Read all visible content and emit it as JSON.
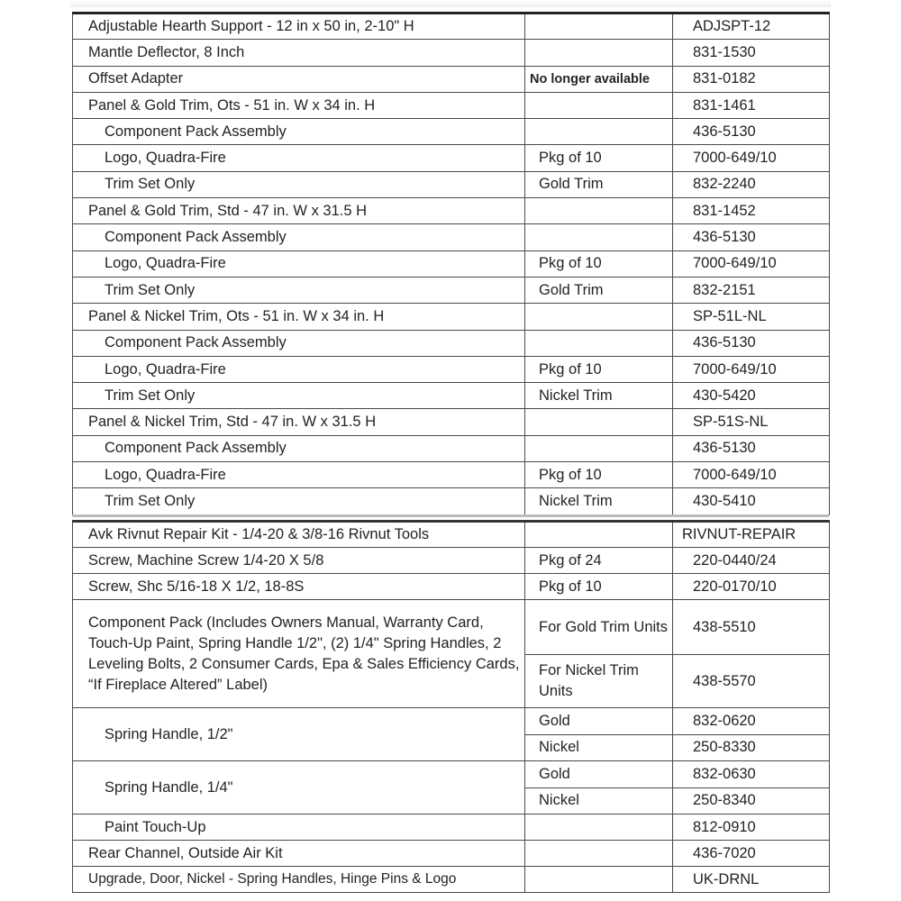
{
  "section1": [
    {
      "desc": "Adjustable Hearth Support - 12 in x 50 in, 2-10\" H",
      "note": "",
      "part": "ADJSPT-12",
      "indent": false
    },
    {
      "desc": "Mantle Deflector, 8 Inch",
      "note": "",
      "part": "831-1530",
      "indent": false
    },
    {
      "desc": "Offset Adapter",
      "note": "No longer available",
      "part": "831-0182",
      "indent": false,
      "bold_note": true
    },
    {
      "desc": "Panel & Gold Trim, Ots -  51 in. W x 34 in. H",
      "note": "",
      "part": "831-1461",
      "indent": false
    },
    {
      "desc": "Component Pack Assembly",
      "note": "",
      "part": "436-5130",
      "indent": true
    },
    {
      "desc": "Logo, Quadra-Fire",
      "note": "Pkg of 10",
      "part": "7000-649/10",
      "indent": true
    },
    {
      "desc": "Trim Set Only",
      "note": " Gold Trim",
      "part": "832-2240",
      "indent": true
    },
    {
      "desc": "Panel & Gold Trim, Std -  47 in. W x 31.5 H",
      "note": "",
      "part": "831-1452",
      "indent": false
    },
    {
      "desc": "Component Pack Assembly",
      "note": "",
      "part": "436-5130",
      "indent": true
    },
    {
      "desc": "Logo, Quadra-Fire",
      "note": "Pkg of 10",
      "part": "7000-649/10",
      "indent": true
    },
    {
      "desc": "Trim Set Only",
      "note": " Gold Trim",
      "part": "832-2151",
      "indent": true
    },
    {
      "desc": "Panel & Nickel Trim, Ots - 51 in. W x 34 in. H",
      "note": "",
      "part": "SP-51L-NL",
      "indent": false
    },
    {
      "desc": "Component Pack Assembly",
      "note": "",
      "part": "436-5130",
      "indent": true
    },
    {
      "desc": "Logo, Quadra-Fire",
      "note": "Pkg of 10",
      "part": "7000-649/10",
      "indent": true
    },
    {
      "desc": "Trim Set Only",
      "note": " Nickel Trim",
      "part": "430-5420",
      "indent": true
    },
    {
      "desc": "Panel & Nickel Trim, Std - 47 in. W x 31.5 H",
      "note": "",
      "part": "SP-51S-NL",
      "indent": false
    },
    {
      "desc": "Component Pack Assembly",
      "note": "",
      "part": "436-5130",
      "indent": true
    },
    {
      "desc": "Logo, Quadra-Fire",
      "note": "Pkg of 10",
      "part": "7000-649/10",
      "indent": true
    },
    {
      "desc": "Trim Set Only",
      "note": " Nickel Trim",
      "part": "430-5410",
      "indent": true
    }
  ],
  "section2": [
    {
      "desc": "Avk Rivnut Repair Kit - 1/4-20 & 3/8-16 Rivnut Tools",
      "variants": [
        {
          "note": "",
          "part": "RIVNUT-REPAIR"
        }
      ],
      "indent": false
    },
    {
      "desc": "Screw, Machine Screw 1/4-20 X 5/8",
      "variants": [
        {
          "note": " Pkg of 24",
          "part": "220-0440/24"
        }
      ],
      "indent": false
    },
    {
      "desc": "Screw, Shc 5/16-18 X 1/2, 18-8S",
      "variants": [
        {
          "note": " Pkg of 10",
          "part": "220-0170/10"
        }
      ],
      "indent": false
    },
    {
      "desc": "Component Pack (Includes Owners Manual, Warranty Card, Touch-Up Paint, Spring Handle 1/2\", (2) 1/4\" Spring Handles, 2 Leveling Bolts, 2 Consumer Cards, Epa & Sales Efficiency Cards, “If Fireplace Altered” Label)",
      "variants": [
        {
          "note": "For Gold Trim Units",
          "part": "438-5510"
        },
        {
          "note": "For Nickel Trim Units",
          "part": "438-5570"
        }
      ],
      "indent": false,
      "tall": true
    },
    {
      "desc": "Spring Handle, 1/2\"",
      "variants": [
        {
          "note": "Gold",
          "part": "832-0620"
        },
        {
          "note": "Nickel",
          "part": "250-8330"
        }
      ],
      "indent": true
    },
    {
      "desc": "Spring Handle, 1/4\"",
      "variants": [
        {
          "note": "Gold",
          "part": "832-0630"
        },
        {
          "note": "Nickel",
          "part": "250-8340"
        }
      ],
      "indent": true
    },
    {
      "desc": "Paint Touch-Up",
      "variants": [
        {
          "note": "",
          "part": "812-0910"
        }
      ],
      "indent": true
    },
    {
      "desc": "Rear Channel, Outside Air Kit",
      "variants": [
        {
          "note": "",
          "part": "436-7020"
        }
      ],
      "indent": false
    },
    {
      "desc": "Upgrade, Door, Nickel - Spring Handles, Hinge Pins & Logo",
      "variants": [
        {
          "note": "",
          "part": "UK-DRNL"
        }
      ],
      "indent": false,
      "small": true
    }
  ]
}
